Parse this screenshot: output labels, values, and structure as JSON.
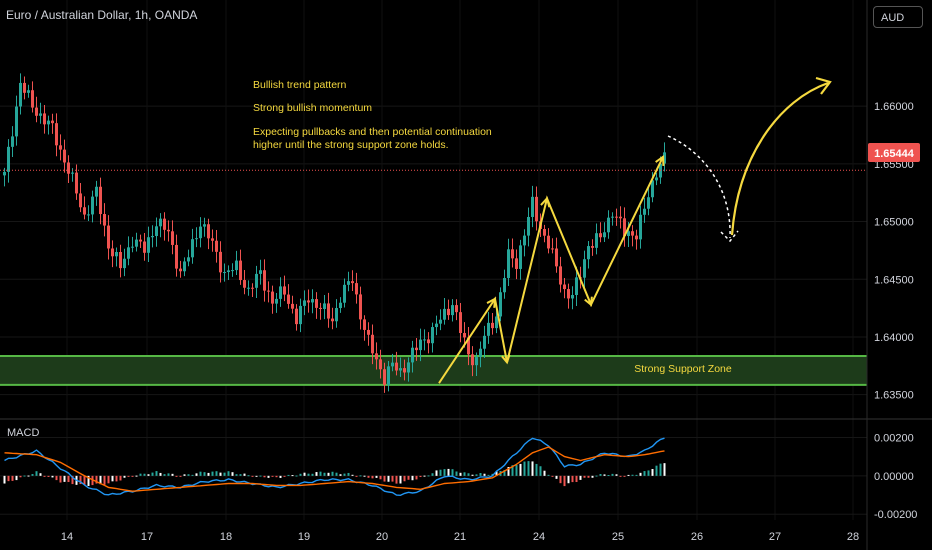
{
  "header": {
    "symbol_title": "Euro / Australian Dollar, 1h, OANDA",
    "currency_button": "AUD"
  },
  "annotations": {
    "line1": "Bullish trend pattern",
    "line2": "Strong bullish momentum",
    "line3a": "Expecting pullbacks and then potential continuation",
    "line3b": "higher until the strong support zone holds.",
    "support_zone": "Strong Support Zone"
  },
  "macd_pane": {
    "label": "MACD",
    "y_ticks": [
      "0.00200",
      "0.00000",
      "-0.00200"
    ]
  },
  "chart_data": {
    "type": "candlestick",
    "symbol": "EURAUD",
    "timeframe": "1h",
    "x_tick_labels": [
      "14",
      "17",
      "18",
      "19",
      "20",
      "21",
      "24",
      "25",
      "26",
      "27",
      "28"
    ],
    "y_tick_labels": [
      "1.66000",
      "1.65500",
      "1.65000",
      "1.64500",
      "1.64000",
      "1.63500"
    ],
    "ylim": [
      1.6335,
      1.6685
    ],
    "last_price": 1.65444,
    "last_price_label": "1.65444",
    "support_zone": [
      1.63585,
      1.63835
    ],
    "close_path": [
      [
        0,
        1.654
      ],
      [
        4,
        1.662
      ],
      [
        7,
        1.66
      ],
      [
        12,
        1.658
      ],
      [
        17,
        1.6535
      ],
      [
        20,
        1.6505
      ],
      [
        23,
        1.6525
      ],
      [
        26,
        1.648
      ],
      [
        29,
        1.646
      ],
      [
        32,
        1.6485
      ],
      [
        35,
        1.6475
      ],
      [
        38,
        1.65
      ],
      [
        41,
        1.649
      ],
      [
        44,
        1.6455
      ],
      [
        46,
        1.647
      ],
      [
        49,
        1.65
      ],
      [
        52,
        1.648
      ],
      [
        55,
        1.6455
      ],
      [
        58,
        1.646
      ],
      [
        61,
        1.644
      ],
      [
        64,
        1.6455
      ],
      [
        67,
        1.643
      ],
      [
        70,
        1.644
      ],
      [
        73,
        1.6415
      ],
      [
        76,
        1.6435
      ],
      [
        79,
        1.6425
      ],
      [
        82,
        1.6415
      ],
      [
        84,
        1.6435
      ],
      [
        87,
        1.645
      ],
      [
        89,
        1.642
      ],
      [
        91,
        1.6395
      ],
      [
        93,
        1.638
      ],
      [
        95,
        1.6365
      ],
      [
        97,
        1.6375
      ],
      [
        99,
        1.637
      ],
      [
        101,
        1.638
      ],
      [
        104,
        1.6395
      ],
      [
        107,
        1.6405
      ],
      [
        110,
        1.642
      ],
      [
        112,
        1.643
      ],
      [
        114,
        1.6405
      ],
      [
        116,
        1.6385
      ],
      [
        118,
        1.638
      ],
      [
        120,
        1.64
      ],
      [
        123,
        1.642
      ],
      [
        126,
        1.647
      ],
      [
        128,
        1.6465
      ],
      [
        130,
        1.649
      ],
      [
        132,
        1.6515
      ],
      [
        134,
        1.6495
      ],
      [
        136,
        1.648
      ],
      [
        138,
        1.646
      ],
      [
        140,
        1.644
      ],
      [
        142,
        1.6435
      ],
      [
        144,
        1.6455
      ],
      [
        146,
        1.648
      ],
      [
        149,
        1.6485
      ],
      [
        152,
        1.651
      ],
      [
        155,
        1.649
      ],
      [
        158,
        1.649
      ],
      [
        160,
        1.651
      ],
      [
        163,
        1.6545
      ],
      [
        165,
        1.6555
      ]
    ],
    "macd_ylim": [
      -0.0023,
      0.0027
    ],
    "macd_path": [
      [
        0,
        0.0008
      ],
      [
        8,
        0.0013
      ],
      [
        14,
        0.0004
      ],
      [
        20,
        -0.0005
      ],
      [
        26,
        -0.001
      ],
      [
        32,
        -0.0008
      ],
      [
        38,
        -0.0005
      ],
      [
        44,
        -0.0006
      ],
      [
        50,
        -0.0003
      ],
      [
        56,
        -0.0002
      ],
      [
        62,
        -0.0004
      ],
      [
        68,
        -0.0006
      ],
      [
        74,
        -0.0004
      ],
      [
        80,
        -0.0002
      ],
      [
        86,
        -0.0002
      ],
      [
        92,
        -0.0005
      ],
      [
        98,
        -0.001
      ],
      [
        104,
        -0.0008
      ],
      [
        110,
        0.0
      ],
      [
        116,
        -0.0002
      ],
      [
        122,
        0.0
      ],
      [
        128,
        0.0012
      ],
      [
        132,
        0.002
      ],
      [
        136,
        0.0016
      ],
      [
        140,
        0.0005
      ],
      [
        144,
        0.0006
      ],
      [
        150,
        0.0012
      ],
      [
        156,
        0.001
      ],
      [
        160,
        0.0013
      ],
      [
        165,
        0.002
      ]
    ],
    "signal_path": [
      [
        0,
        0.0012
      ],
      [
        8,
        0.0011
      ],
      [
        14,
        0.0007
      ],
      [
        20,
        0.0
      ],
      [
        26,
        -0.0006
      ],
      [
        32,
        -0.0008
      ],
      [
        38,
        -0.0007
      ],
      [
        44,
        -0.0006
      ],
      [
        50,
        -0.0005
      ],
      [
        56,
        -0.0004
      ],
      [
        62,
        -0.0004
      ],
      [
        68,
        -0.0005
      ],
      [
        74,
        -0.0005
      ],
      [
        80,
        -0.0004
      ],
      [
        86,
        -0.0003
      ],
      [
        92,
        -0.0004
      ],
      [
        98,
        -0.0006
      ],
      [
        104,
        -0.0007
      ],
      [
        110,
        -0.0004
      ],
      [
        116,
        -0.0003
      ],
      [
        122,
        -0.0001
      ],
      [
        128,
        0.0006
      ],
      [
        132,
        0.0012
      ],
      [
        136,
        0.0015
      ],
      [
        140,
        0.001
      ],
      [
        144,
        0.0008
      ],
      [
        150,
        0.0011
      ],
      [
        156,
        0.001
      ],
      [
        160,
        0.0011
      ],
      [
        165,
        0.0013
      ]
    ],
    "colors": {
      "up": "#26a69a",
      "down": "#ef5350",
      "macd": "#2196f3",
      "signal": "#ff6d00",
      "annotation": "#f5d93f",
      "support_fill": "#1d3b1a",
      "support_line": "#56b845",
      "last_price_bg": "#ef5350"
    }
  }
}
